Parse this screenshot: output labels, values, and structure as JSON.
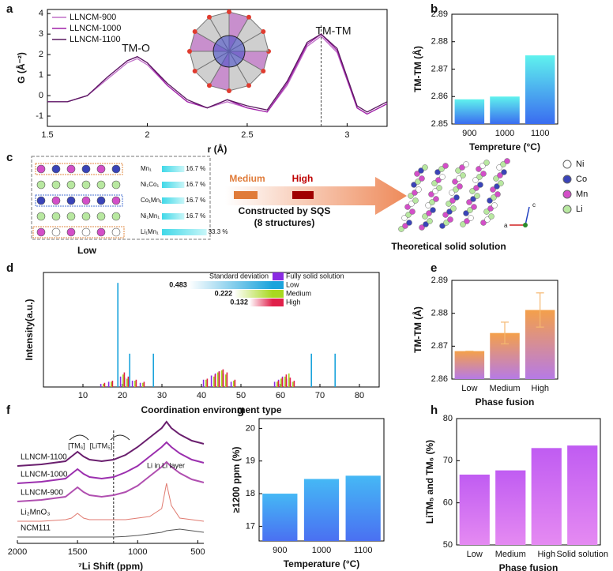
{
  "chart_data": [
    {
      "panel": "a",
      "type": "line",
      "xlabel": "r (Å)",
      "ylabel": "G (Å⁻²)",
      "x": [
        1.5,
        1.6,
        1.7,
        1.8,
        1.9,
        1.95,
        2.0,
        2.1,
        2.2,
        2.3,
        2.4,
        2.5,
        2.6,
        2.7,
        2.8,
        2.87,
        2.95,
        3.05,
        3.1,
        3.2
      ],
      "series": [
        {
          "name": "LLNCM-900",
          "color": "#c070c8",
          "values": [
            -0.3,
            -0.3,
            0.0,
            0.8,
            1.6,
            1.8,
            1.5,
            0.5,
            -0.3,
            -0.6,
            -0.3,
            -0.6,
            -0.8,
            0.5,
            2.4,
            2.9,
            2.1,
            -0.6,
            -0.9,
            -0.4
          ]
        },
        {
          "name": "LLNCM-1000",
          "color": "#a020a8",
          "values": [
            -0.3,
            -0.3,
            0.0,
            0.9,
            1.7,
            1.9,
            1.6,
            0.5,
            -0.3,
            -0.6,
            -0.2,
            -0.6,
            -0.8,
            0.6,
            2.5,
            3.0,
            2.2,
            -0.6,
            -0.9,
            -0.4
          ]
        },
        {
          "name": "LLNCM-1100",
          "color": "#5a1a60",
          "values": [
            -0.3,
            -0.3,
            0.0,
            0.9,
            1.7,
            1.9,
            1.6,
            0.6,
            -0.2,
            -0.6,
            -0.2,
            -0.5,
            -0.7,
            0.7,
            2.6,
            3.0,
            2.3,
            -0.5,
            -0.8,
            -0.3
          ]
        }
      ],
      "annotations": [
        "TM-O",
        "TM-TM"
      ],
      "reference_x": 2.87,
      "xlim": [
        1.5,
        3.2
      ],
      "xticks": [
        1.5,
        2,
        2.5,
        3
      ],
      "ylim": [
        -1.5,
        4.2
      ],
      "yticks": [
        -1,
        0,
        1,
        2,
        3,
        4
      ]
    },
    {
      "panel": "b",
      "type": "bar",
      "xlabel": "Tempreture (°C)",
      "ylabel": "TM-TM (Å)",
      "categories": [
        "900",
        "1000",
        "1100"
      ],
      "values": [
        2.859,
        2.86,
        2.875
      ],
      "gradient": [
        "#5ff2ee",
        "#3a6cf0"
      ],
      "ylim": [
        2.85,
        2.89
      ],
      "yticks": [
        2.85,
        2.86,
        2.87,
        2.88,
        2.89
      ]
    },
    {
      "panel": "d",
      "type": "stem",
      "xlabel": "Coordination environment type",
      "ylabel": "Intensity(a.u.)",
      "std_dev_title": "Standard deviation",
      "series": [
        {
          "name": "Fully solid solution",
          "color": "#8a2be2",
          "x": [
            15,
            17,
            20,
            21,
            23,
            25,
            41,
            43,
            44,
            45,
            46,
            48,
            59,
            60,
            61,
            62,
            63
          ],
          "values": [
            0.03,
            0.05,
            0.1,
            0.09,
            0.06,
            0.04,
            0.07,
            0.11,
            0.13,
            0.15,
            0.13,
            0.05,
            0.05,
            0.07,
            0.1,
            0.08,
            0.05
          ]
        },
        {
          "name": "Low",
          "color": "#1ba3dc",
          "std_dev": 0.483,
          "x": [
            19,
            22,
            28,
            68,
            74
          ],
          "values": [
            1.0,
            0.32,
            0.32,
            0.32,
            0.32
          ]
        },
        {
          "name": "Medium",
          "color": "#a8d820",
          "std_dev": 0.222,
          "x": [
            15,
            17,
            20,
            21,
            23,
            25,
            41,
            43,
            44,
            45,
            46,
            48,
            59,
            60,
            61,
            62,
            63
          ],
          "values": [
            0.03,
            0.05,
            0.12,
            0.08,
            0.06,
            0.04,
            0.07,
            0.1,
            0.14,
            0.16,
            0.12,
            0.06,
            0.05,
            0.08,
            0.1,
            0.13,
            0.05
          ]
        },
        {
          "name": "High",
          "color": "#e0204a",
          "std_dev": 0.132,
          "x": [
            15,
            17,
            20,
            21,
            23,
            25,
            41,
            43,
            44,
            45,
            46,
            48,
            59,
            60,
            61,
            62,
            63
          ],
          "values": [
            0.04,
            0.06,
            0.14,
            0.1,
            0.07,
            0.05,
            0.08,
            0.12,
            0.15,
            0.17,
            0.14,
            0.07,
            0.06,
            0.09,
            0.12,
            0.09,
            0.06
          ]
        }
      ],
      "xlim": [
        0,
        85
      ],
      "xticks": [
        10,
        20,
        30,
        40,
        50,
        60,
        70,
        80
      ],
      "ylim": [
        0,
        1.1
      ]
    },
    {
      "panel": "e",
      "type": "bar",
      "xlabel": "Phase fusion",
      "ylabel": "TM-TM (Å)",
      "categories": [
        "Low",
        "Medium",
        "High"
      ],
      "values": [
        2.8685,
        2.874,
        2.881
      ],
      "errors": [
        0,
        0.0033,
        0.0052
      ],
      "gradient": [
        "#f4a04a",
        "#b67ae6"
      ],
      "error_color": "#f5b870",
      "ylim": [
        2.86,
        2.89
      ],
      "yticks": [
        2.86,
        2.87,
        2.88,
        2.89
      ]
    },
    {
      "panel": "f",
      "type": "spectra",
      "xlabel": "⁷Li Shift (ppm)",
      "x": [
        2000,
        1800,
        1600,
        1550,
        1500,
        1450,
        1400,
        1300,
        1200,
        1100,
        1000,
        900,
        800,
        760,
        720,
        650,
        550,
        450
      ],
      "series": [
        {
          "name": "LLNCM-1100",
          "color": "#6a1f6e",
          "values": [
            0,
            0.05,
            0.15,
            0.3,
            0.45,
            0.3,
            0.2,
            0.15,
            0.2,
            0.35,
            0.6,
            0.9,
            1.2,
            1.4,
            1.2,
            1.0,
            0.8,
            0.7
          ]
        },
        {
          "name": "LLNCM-1000",
          "color": "#9b2fae",
          "values": [
            0,
            0.05,
            0.15,
            0.3,
            0.45,
            0.3,
            0.2,
            0.15,
            0.2,
            0.35,
            0.55,
            0.85,
            1.15,
            1.3,
            1.15,
            0.95,
            0.75,
            0.65
          ]
        },
        {
          "name": "LLNCM-900",
          "color": "#b04fb0",
          "values": [
            0,
            0.05,
            0.15,
            0.3,
            0.45,
            0.3,
            0.2,
            0.15,
            0.2,
            0.3,
            0.5,
            0.8,
            1.1,
            1.25,
            1.1,
            0.9,
            0.7,
            0.6
          ]
        },
        {
          "name": "Li₂MnO₃",
          "color": "#e07a70",
          "values": [
            0,
            0,
            0.05,
            0.1,
            0.25,
            0.1,
            0.05,
            0.05,
            0.05,
            0.05,
            0.1,
            0.15,
            0.4,
            1.2,
            0.5,
            0.1,
            0.05,
            0
          ]
        },
        {
          "name": "NCM111",
          "color": "#555555",
          "values": [
            0,
            0,
            0,
            0,
            0,
            0,
            0,
            0,
            0,
            0.02,
            0.05,
            0.1,
            0.15,
            0.2,
            0.22,
            0.25,
            0.2,
            0.15
          ]
        }
      ],
      "annotations": [
        "[TM₆]",
        "[LiTM₅]",
        "Li in Li layer"
      ],
      "reference_x": 1200,
      "xlim": [
        2000,
        450
      ],
      "xticks": [
        2000,
        1500,
        1000,
        500
      ],
      "ylim": [
        0,
        1.5
      ]
    },
    {
      "panel": "g",
      "type": "bar",
      "xlabel": "Temperature (°C)",
      "ylabel": "≥1200 ppm (%)",
      "categories": [
        "900",
        "1000",
        "1100"
      ],
      "values": [
        18.0,
        18.45,
        18.55
      ],
      "gradient": [
        "#45b8f5",
        "#4a70f2"
      ],
      "ylim": [
        16.55,
        20.3
      ],
      "yticks": [
        17,
        18,
        19,
        20
      ]
    },
    {
      "panel": "h",
      "type": "bar",
      "xlabel": "Phase fusion",
      "ylabel": "LiTM₅ and TM₆ (%)",
      "categories": [
        "Low",
        "Medium",
        "High",
        "Solid solution"
      ],
      "values": [
        66.7,
        67.7,
        73.0,
        73.6
      ],
      "gradient": [
        "#c05cf2",
        "#e58af2"
      ],
      "ylim": [
        50,
        80
      ],
      "yticks": [
        50,
        60,
        70,
        80
      ]
    }
  ],
  "diagram": {
    "panel": "c",
    "composition": [
      {
        "label": "Mn₁",
        "value": 16.7,
        "value_label": "16.7 %"
      },
      {
        "label": "Ni₁Co₁",
        "value": 16.7,
        "value_label": "16.7 %"
      },
      {
        "label": "Co₁Mn₁",
        "value": 16.7,
        "value_label": "16.7 %"
      },
      {
        "label": "Ni₁Mn₁",
        "value": 16.7,
        "value_label": "16.7 %"
      },
      {
        "label": "Li₁Mn₁",
        "value": 33.3,
        "value_label": "33.3 %"
      }
    ],
    "low_label": "Low",
    "medium_label": "Medium",
    "high_label": "High",
    "arrow_text": [
      "Constructed by SQS",
      "(8 structures)"
    ],
    "result_label": "Theoretical solid solution",
    "legend": [
      "Ni",
      "Co",
      "Mn",
      "Li"
    ],
    "axes": [
      "c",
      "a"
    ]
  }
}
